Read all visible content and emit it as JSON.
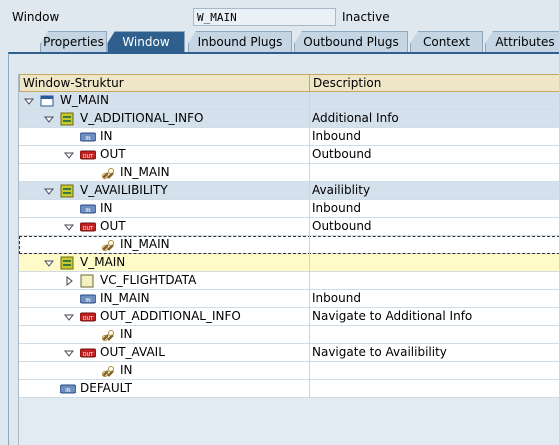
{
  "header": {
    "label": "Window",
    "name": "W_MAIN",
    "status": "Inactive"
  },
  "tabs": {
    "items": [
      "Properties",
      "Window",
      "Inbound Plugs",
      "Outbound Plugs",
      "Context",
      "Attributes"
    ],
    "selected": 1
  },
  "table": {
    "columns": [
      "Window-Struktur",
      "Description"
    ],
    "rows": [
      {
        "label": "W_MAIN",
        "level": 0,
        "icon": "window",
        "expanded": true
      },
      {
        "label": "V_ADDITIONAL_INFO",
        "level": 1,
        "icon": "view",
        "expanded": true,
        "description": "Additional Info"
      },
      {
        "label": "IN",
        "level": 2,
        "icon": "inbound",
        "description": "Inbound"
      },
      {
        "label": "OUT",
        "level": 2,
        "icon": "outbound",
        "expanded": true,
        "description": "Outbound"
      },
      {
        "label": "IN_MAIN",
        "level": 3,
        "icon": "link"
      },
      {
        "label": "V_AVAILIBILITY",
        "level": 1,
        "icon": "view",
        "expanded": true,
        "description": "Availiblity"
      },
      {
        "label": "IN",
        "level": 2,
        "icon": "inbound",
        "description": "Inbound"
      },
      {
        "label": "OUT",
        "level": 2,
        "icon": "outbound",
        "expanded": true,
        "description": "Outbound"
      },
      {
        "label": "IN_MAIN",
        "level": 3,
        "icon": "link",
        "focused": true
      },
      {
        "label": "V_MAIN",
        "level": 1,
        "icon": "view",
        "expanded": true,
        "selected": true
      },
      {
        "label": "VC_FLIGHTDATA",
        "level": 2,
        "icon": "container",
        "expanded": false
      },
      {
        "label": "IN_MAIN",
        "level": 2,
        "icon": "inbound",
        "description": "Inbound"
      },
      {
        "label": "OUT_ADDITIONAL_INFO",
        "level": 2,
        "icon": "outbound",
        "expanded": true,
        "description": "Navigate to Additional Info"
      },
      {
        "label": "IN",
        "level": 3,
        "icon": "link"
      },
      {
        "label": "OUT_AVAIL",
        "level": 2,
        "icon": "outbound",
        "expanded": true,
        "description": "Navigate to Availibility"
      },
      {
        "label": "IN",
        "level": 3,
        "icon": "link"
      },
      {
        "label": "DEFAULT",
        "level": 1,
        "icon": "inbound"
      }
    ]
  }
}
